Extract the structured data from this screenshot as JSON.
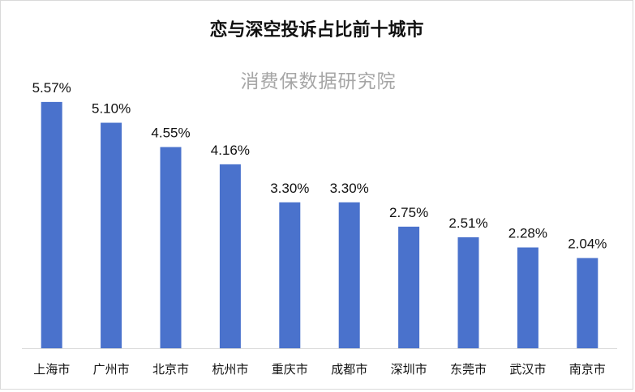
{
  "chart_data": {
    "type": "bar",
    "title": "恋与深空投诉占比前十城市",
    "watermark": "消费保数据研究院",
    "categories": [
      "上海市",
      "广州市",
      "北京市",
      "杭州市",
      "重庆市",
      "成都市",
      "深圳市",
      "东莞市",
      "武汉市",
      "南京市"
    ],
    "values": [
      5.57,
      5.1,
      4.55,
      4.16,
      3.3,
      3.3,
      2.75,
      2.51,
      2.28,
      2.04
    ],
    "data_labels": [
      "5.57%",
      "5.10%",
      "4.55%",
      "4.16%",
      "3.30%",
      "3.30%",
      "2.75%",
      "2.51%",
      "2.28%",
      "2.04%"
    ],
    "bar_color": "#4a72cc",
    "xlabel": "",
    "ylabel": "",
    "ylim": [
      0,
      6
    ],
    "grid": false,
    "legend": "none"
  }
}
